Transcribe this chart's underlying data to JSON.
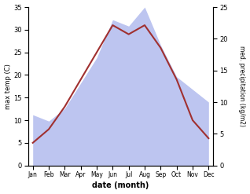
{
  "months": [
    "Jan",
    "Feb",
    "Mar",
    "Apr",
    "May",
    "Jun",
    "Jul",
    "Aug",
    "Sep",
    "Oct",
    "Nov",
    "Dec"
  ],
  "temp": [
    5,
    8,
    13,
    19,
    25,
    31,
    29,
    31,
    26,
    19,
    10,
    6
  ],
  "precip": [
    8,
    7,
    9,
    13,
    17,
    23,
    22,
    25,
    19,
    14,
    12,
    10
  ],
  "temp_color": "#a03030",
  "precip_fill_color": "#bdc5f0",
  "left_label": "max temp (C)",
  "right_label": "med. precipitation (kg/m2)",
  "xlabel": "date (month)",
  "ylim_left": [
    0,
    35
  ],
  "ylim_right": [
    0,
    25
  ],
  "yticks_left": [
    0,
    5,
    10,
    15,
    20,
    25,
    30,
    35
  ],
  "yticks_right": [
    0,
    5,
    10,
    15,
    20,
    25
  ],
  "bg_color": "#ffffff"
}
